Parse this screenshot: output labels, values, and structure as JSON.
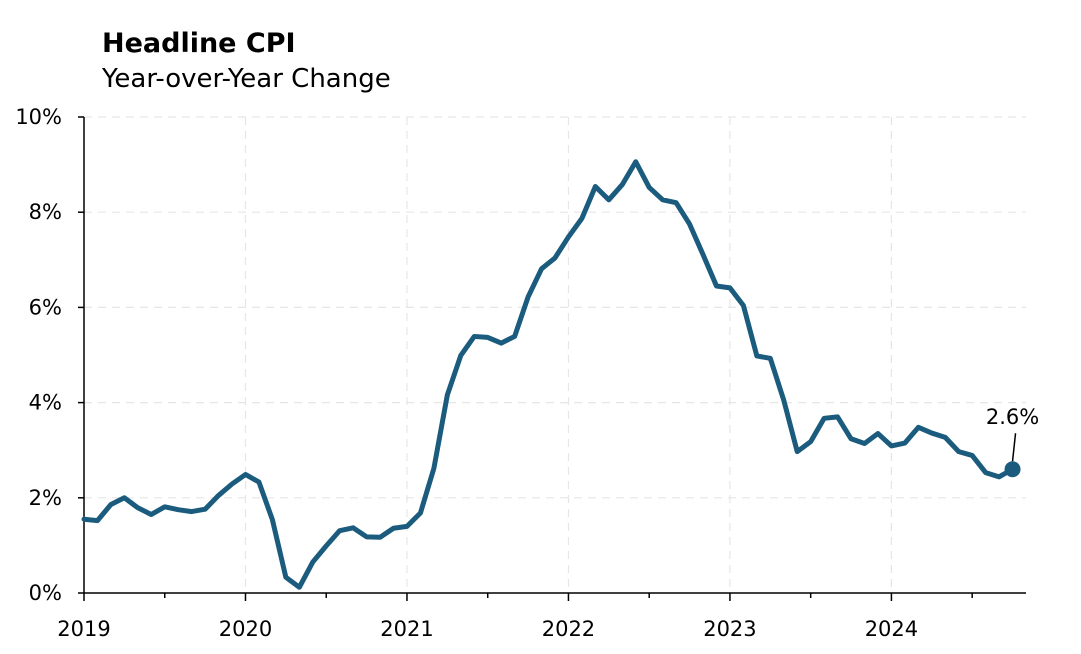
{
  "chart_data": {
    "type": "line",
    "title": "Headline CPI",
    "subtitle": "Year-over-Year Change",
    "xlabel": "",
    "ylabel": "",
    "ylim": [
      0,
      10
    ],
    "y_ticks": [
      0,
      2,
      4,
      6,
      8,
      10
    ],
    "y_tick_labels": [
      "0%",
      "2%",
      "4%",
      "6%",
      "8%",
      "10%"
    ],
    "x_ticks": [
      "2019",
      "2020",
      "2021",
      "2022",
      "2023",
      "2024"
    ],
    "grid": true,
    "colors": {
      "line": "#1b5c7e",
      "grid": "#e6e6e6",
      "axis": "#000000"
    },
    "series": [
      {
        "x": [
          "2019-01",
          "2019-02",
          "2019-03",
          "2019-04",
          "2019-05",
          "2019-06",
          "2019-07",
          "2019-08",
          "2019-09",
          "2019-10",
          "2019-11",
          "2019-12",
          "2020-01",
          "2020-02",
          "2020-03",
          "2020-04",
          "2020-05",
          "2020-06",
          "2020-07",
          "2020-08",
          "2020-09",
          "2020-10",
          "2020-11",
          "2020-12",
          "2021-01",
          "2021-02",
          "2021-03",
          "2021-04",
          "2021-05",
          "2021-06",
          "2021-07",
          "2021-08",
          "2021-09",
          "2021-10",
          "2021-11",
          "2021-12",
          "2022-01",
          "2022-02",
          "2022-03",
          "2022-04",
          "2022-05",
          "2022-06",
          "2022-07",
          "2022-08",
          "2022-09",
          "2022-10",
          "2022-11",
          "2022-12",
          "2023-01",
          "2023-02",
          "2023-03",
          "2023-04",
          "2023-05",
          "2023-06",
          "2023-07",
          "2023-08",
          "2023-09",
          "2023-10",
          "2023-11",
          "2023-12",
          "2024-01",
          "2024-02",
          "2024-03",
          "2024-04",
          "2024-05",
          "2024-06",
          "2024-07",
          "2024-08",
          "2024-09",
          "2024-10"
        ],
        "values": [
          1.55,
          1.52,
          1.86,
          2.0,
          1.79,
          1.65,
          1.81,
          1.75,
          1.71,
          1.76,
          2.05,
          2.29,
          2.49,
          2.33,
          1.54,
          0.33,
          0.12,
          0.65,
          0.99,
          1.31,
          1.37,
          1.18,
          1.17,
          1.36,
          1.4,
          1.68,
          2.62,
          4.16,
          4.99,
          5.39,
          5.37,
          5.25,
          5.39,
          6.22,
          6.81,
          7.04,
          7.48,
          7.87,
          8.54,
          8.26,
          8.58,
          9.06,
          8.52,
          8.26,
          8.2,
          7.75,
          7.11,
          6.45,
          6.41,
          6.04,
          4.98,
          4.93,
          4.05,
          2.97,
          3.18,
          3.67,
          3.7,
          3.24,
          3.14,
          3.35,
          3.09,
          3.15,
          3.48,
          3.36,
          3.27,
          2.97,
          2.89,
          2.53,
          2.44,
          2.6
        ]
      }
    ],
    "end_label": "2.6%"
  }
}
